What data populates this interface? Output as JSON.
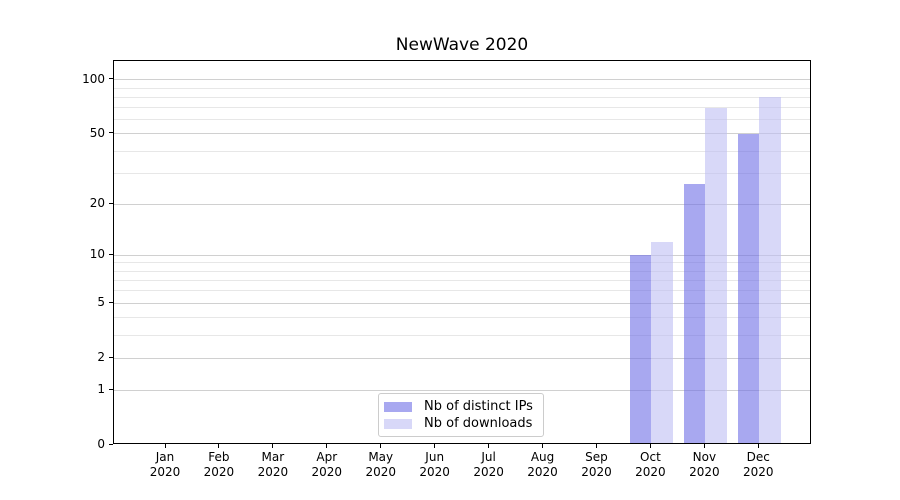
{
  "chart_data": {
    "type": "bar",
    "title": "NewWave 2020",
    "categories": [
      "Jan 2020",
      "Feb 2020",
      "Mar 2020",
      "Apr 2020",
      "May 2020",
      "Jun 2020",
      "Jul 2020",
      "Aug 2020",
      "Sep 2020",
      "Oct 2020",
      "Nov 2020",
      "Dec 2020"
    ],
    "series": [
      {
        "name": "Nb of distinct IPs",
        "values": [
          0,
          0,
          0,
          0,
          0,
          0,
          0,
          0,
          0,
          10,
          26,
          50
        ],
        "fill": "rgba(110,110,230,0.6)",
        "legend_color": "#a8a8f0"
      },
      {
        "name": "Nb of downloads",
        "values": [
          0,
          0,
          0,
          0,
          0,
          0,
          0,
          0,
          0,
          12,
          70,
          80
        ],
        "fill": "rgba(190,190,243,0.6)",
        "legend_color": "#d8d8f8"
      }
    ],
    "y_scale": "log1p",
    "y_ticks": [
      0,
      1,
      2,
      5,
      10,
      20,
      50,
      100
    ],
    "y_minor_ticks": [
      3,
      4,
      6,
      7,
      8,
      9,
      30,
      40,
      60,
      70,
      80,
      90
    ],
    "ylim": [
      0,
      127
    ],
    "grid": "horizontal-major-and-minor",
    "legend_position": "lower-center-inside",
    "colors": {
      "grid_major": "#d0d0d0",
      "grid_minor": "#e7e7e7",
      "axis": "#000000",
      "background": "#ffffff",
      "text": "#000000"
    }
  }
}
